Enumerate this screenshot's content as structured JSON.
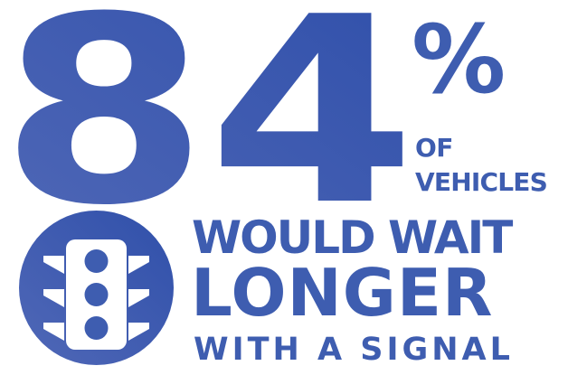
{
  "headline": {
    "number": "84",
    "percent_sign": "%",
    "line_of": "OF",
    "line_vehicles": "VEHICLES"
  },
  "statement": {
    "line1": "WOULD WAIT",
    "line2": "LONGER",
    "line3": "WITH A SIGNAL"
  },
  "icons": {
    "badge": "traffic-light-icon"
  },
  "colors": {
    "primary": "#3E5DB0",
    "icon_fill": "#FFFFFF",
    "background": "#FFFFFF"
  }
}
